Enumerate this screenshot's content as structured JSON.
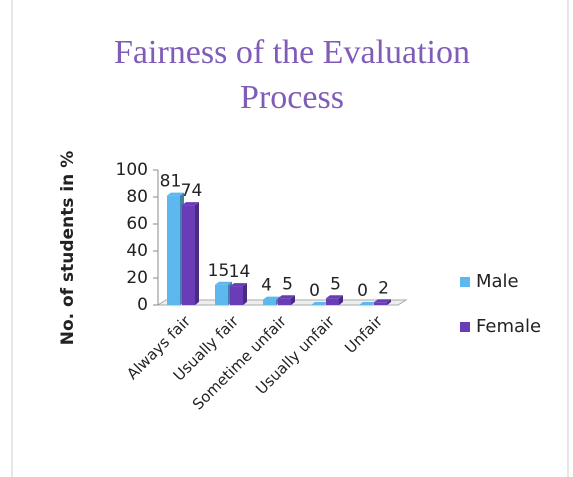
{
  "chart_data": {
    "type": "bar",
    "title": "Fairness of the Evaluation Process",
    "y_label": "No. of students in %",
    "categories": [
      "Always fair",
      "Usually fair",
      "Sometime unfair",
      "Usually unfair",
      "Unfair"
    ],
    "series": [
      {
        "name": "Male",
        "color": "#5cb8ef",
        "values": [
          81,
          15,
          4,
          0,
          0
        ]
      },
      {
        "name": "Female",
        "color": "#6a3db8",
        "values": [
          74,
          14,
          5,
          5,
          2
        ]
      }
    ],
    "ylim": [
      0,
      100
    ],
    "yticks": [
      0,
      20,
      40,
      60,
      80,
      100
    ],
    "legend": "right"
  }
}
